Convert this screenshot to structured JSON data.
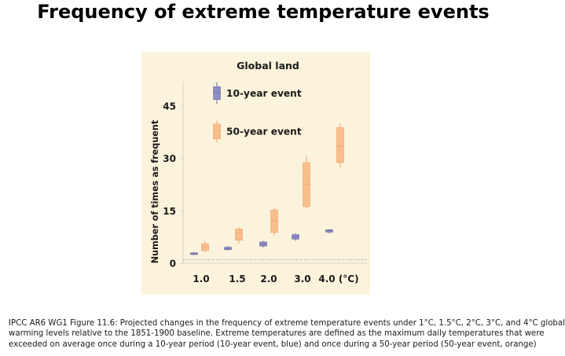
{
  "title": "Frequency of extreme temperature events",
  "caption": {
    "line1": "IPCC AR6 WG1 Figure 11.6: Projected changes in the frequency of extreme temperature events under 1°C, 1.5°C, 2°C, 3°C, and 4°C  global",
    "line2": "warming levels relative to the 1851-1900 baseline. Extreme temperatures are defined as the  maximum daily temperatures that were",
    "line3": "exceeded on average once during a 10-year period (10-year event, blue) and once during a 50-year period (50-year event, orange)"
  },
  "colors": {
    "panel_bg": "#fbf3dc",
    "ten_year_fill": "#8d8cc6",
    "ten_year_stroke": "#6f6eab",
    "fifty_year_fill": "#f8be8c",
    "fifty_year_stroke": "#f3a36b",
    "axis": "#d5d0c6",
    "baseline": "#9a9a9a"
  },
  "chart_data": {
    "type": "box",
    "title": "Global land",
    "ylabel": "Number of times as frequent",
    "xlabel": "",
    "categories": [
      "1.0",
      "1.5",
      "2.0",
      "3.0",
      "4.0 (°C)"
    ],
    "y_ticks": [
      0,
      15,
      30,
      45
    ],
    "ylim": [
      0,
      52
    ],
    "grid": false,
    "reference_line": 1,
    "legend_position": "top-left",
    "series": [
      {
        "name": "10-year event",
        "color": "#8d8cc6",
        "boxes": [
          {
            "min": 2.3,
            "q1": 2.5,
            "median": 2.7,
            "q3": 3.0,
            "max": 3.2
          },
          {
            "min": 3.6,
            "q1": 3.9,
            "median": 4.2,
            "q3": 4.6,
            "max": 5.0
          },
          {
            "min": 4.5,
            "q1": 4.9,
            "median": 5.5,
            "q3": 6.1,
            "max": 6.4
          },
          {
            "min": 6.4,
            "q1": 6.9,
            "median": 7.5,
            "q3": 8.2,
            "max": 8.6
          },
          {
            "min": 8.5,
            "q1": 8.9,
            "median": 9.3,
            "q3": 9.6,
            "max": 9.8
          }
        ]
      },
      {
        "name": "50-year event",
        "color": "#f8be8c",
        "boxes": [
          {
            "min": 3.2,
            "q1": 3.6,
            "median": 4.8,
            "q3": 5.6,
            "max": 6.4
          },
          {
            "min": 5.6,
            "q1": 6.6,
            "median": 8.7,
            "q3": 9.8,
            "max": 10.4
          },
          {
            "min": 8.0,
            "q1": 8.8,
            "median": 12.2,
            "q3": 15.2,
            "max": 15.8
          },
          {
            "min": 15.6,
            "q1": 16.2,
            "median": 22.5,
            "q3": 28.8,
            "max": 30.6
          },
          {
            "min": 27.5,
            "q1": 28.8,
            "median": 33.5,
            "q3": 38.8,
            "max": 40.0
          }
        ]
      }
    ],
    "legend": [
      {
        "label": "10-year event",
        "series": 0,
        "glyph": {
          "min": 45.5,
          "q1": 46.8,
          "median": 48.8,
          "q3": 50.5,
          "max": 51.8
        }
      },
      {
        "label": "50-year event",
        "series": 1,
        "glyph": {
          "min": 34.5,
          "q1": 35.6,
          "median": 37.8,
          "q3": 39.8,
          "max": 40.8
        }
      }
    ]
  }
}
